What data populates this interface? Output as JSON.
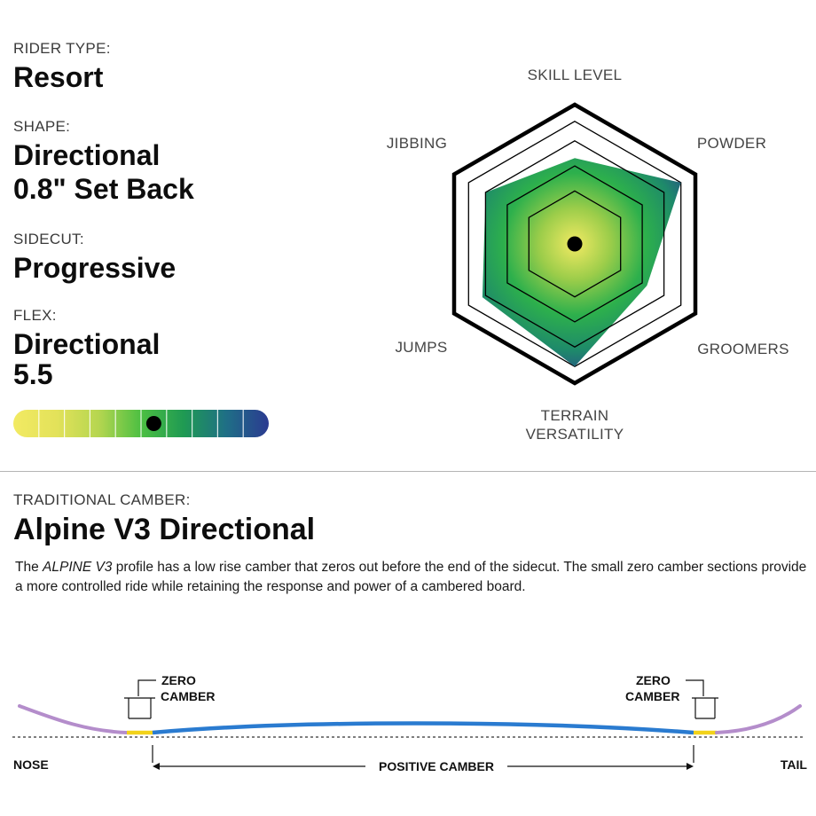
{
  "specs": {
    "rider_type_label": "RIDER TYPE:",
    "rider_type_value": "Resort",
    "shape_label": "SHAPE:",
    "shape_value_line1": "Directional",
    "shape_value_line2": "0.8\" Set Back",
    "sidecut_label": "SIDECUT:",
    "sidecut_value": "Progressive",
    "flex_label": "FLEX:",
    "flex_value_line1": "Directional",
    "flex_value_line2": "5.5"
  },
  "flex_scale": {
    "segments": 10,
    "value": 5.5,
    "max": 10,
    "gradient_colors": [
      "#f2ea63",
      "#e3e25a",
      "#b6d650",
      "#4cbf42",
      "#1f9a53",
      "#1f6f86",
      "#2b3a91"
    ]
  },
  "radar": {
    "axes": [
      "SKILL LEVEL",
      "POWDER",
      "GROOMERS",
      "TERRAIN VERSATILITY",
      "JUMPS",
      "JIBBING"
    ],
    "axis_label_lines": [
      [
        "SKILL LEVEL"
      ],
      [
        "POWDER"
      ],
      [
        "GROOMERS"
      ],
      [
        "TERRAIN",
        "VERSATILITY"
      ],
      [
        "JUMPS"
      ],
      [
        "JIBBING"
      ]
    ],
    "values": [
      0.7,
      1.0,
      0.68,
      1.0,
      0.87,
      0.84
    ],
    "max": 1.0,
    "gradient_colors": [
      "#f2ea63",
      "#9ccd4a",
      "#2db04c",
      "#1e8a6a",
      "#2a3c93"
    ]
  },
  "camber": {
    "type_label": "TRADITIONAL CAMBER:",
    "title": "Alpine V3 Directional",
    "description_italic": "ALPINE V3",
    "description_before": "The ",
    "description_after": " profile has a low rise camber that zeros out before the end of the sidecut. The small zero camber sections provide a more controlled ride while retaining the response and power of a cambered board.",
    "zero_camber_left_line1": "ZERO",
    "zero_camber_left_line2": "CAMBER",
    "zero_camber_right_line1": "ZERO",
    "zero_camber_right_line2": "CAMBER",
    "positive_camber": "POSITIVE CAMBER",
    "nose_label": "NOSE",
    "tail_label": "TAIL",
    "colors": {
      "rocker": "#b48dcb",
      "zero": "#f2d21a",
      "camber": "#2a7bd0"
    }
  }
}
